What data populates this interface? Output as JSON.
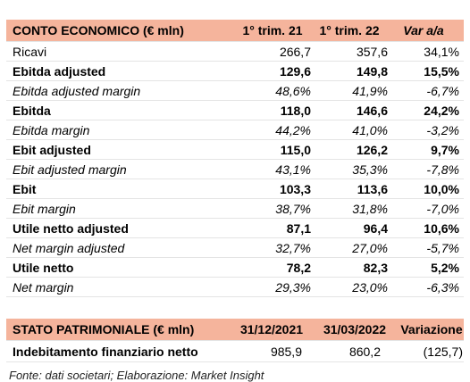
{
  "income": {
    "header": {
      "label": "CONTO ECONOMICO (€ mln)",
      "col1": "1° trim. 21",
      "col2": "1° trim. 22",
      "col3": "Var a/a"
    },
    "rows": [
      {
        "label": "Ricavi",
        "v1": "266,7",
        "v2": "357,6",
        "v3": "34,1%"
      },
      {
        "label": "Ebitda adjusted",
        "v1": "129,6",
        "v2": "149,8",
        "v3": "15,5%"
      },
      {
        "label": "Ebitda adjusted margin",
        "v1": "48,6%",
        "v2": "41,9%",
        "v3": "-6,7%"
      },
      {
        "label": "Ebitda",
        "v1": "118,0",
        "v2": "146,6",
        "v3": "24,2%"
      },
      {
        "label": "Ebitda margin",
        "v1": "44,2%",
        "v2": "41,0%",
        "v3": "-3,2%"
      },
      {
        "label": "Ebit adjusted",
        "v1": "115,0",
        "v2": "126,2",
        "v3": "9,7%"
      },
      {
        "label": "Ebit adjusted margin",
        "v1": "43,1%",
        "v2": "35,3%",
        "v3": "-7,8%"
      },
      {
        "label": "Ebit",
        "v1": "103,3",
        "v2": "113,6",
        "v3": "10,0%"
      },
      {
        "label": "Ebit margin",
        "v1": "38,7%",
        "v2": "31,8%",
        "v3": "-7,0%"
      },
      {
        "label": "Utile netto adjusted",
        "v1": "87,1",
        "v2": "96,4",
        "v3": "10,6%"
      },
      {
        "label": "Net margin adjusted",
        "v1": "32,7%",
        "v2": "27,0%",
        "v3": "-5,7%"
      },
      {
        "label": "Utile netto",
        "v1": "78,2",
        "v2": "82,3",
        "v3": "5,2%"
      },
      {
        "label": "Net margin",
        "v1": "29,3%",
        "v2": "23,0%",
        "v3": "-6,3%"
      }
    ]
  },
  "balance": {
    "header": {
      "label": "STATO PATRIMONIALE (€ mln)",
      "col1": "31/12/2021",
      "col2": "31/03/2022",
      "col3": "Variazione"
    },
    "row": {
      "label": "Indebitamento finanziario netto",
      "v1": "985,9",
      "v2": "860,2",
      "v3": "(125,7)"
    }
  },
  "footer": "Fonte: dati societari; Elaborazione: Market Insight",
  "colors": {
    "header_bg": "#f5b49c",
    "row_border": "#e4e4e4"
  }
}
